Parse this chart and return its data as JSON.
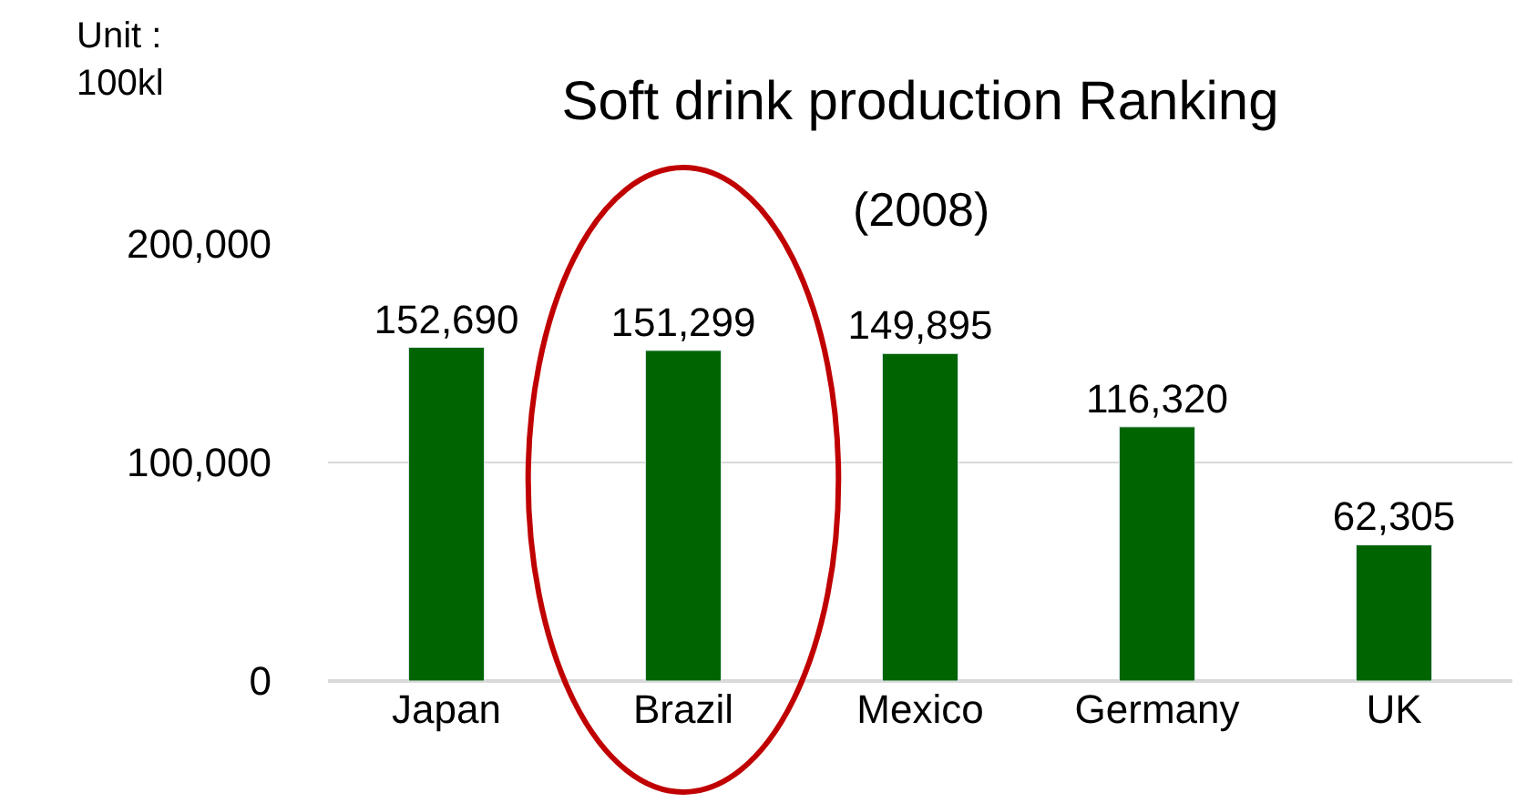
{
  "chart_data": {
    "type": "bar",
    "title": "Soft drink production Ranking",
    "subtitle": "(2008)",
    "annotations": [
      "Unit :\n100kl"
    ],
    "categories": [
      "Japan",
      "Brazil",
      "Mexico",
      "Germany",
      "UK"
    ],
    "values": [
      152690,
      151299,
      149895,
      116320,
      62305
    ],
    "color": "#006400",
    "ylim": [
      0,
      200000
    ],
    "yticks": [
      {
        "value": 0,
        "label": "0"
      },
      {
        "value": 100000,
        "label": "100,000"
      },
      {
        "value": 200000,
        "label": "200,000"
      }
    ],
    "value_labels": [
      "152,690",
      "151,299",
      "149,895",
      "116,320",
      "62,305"
    ],
    "grid": "y"
  }
}
